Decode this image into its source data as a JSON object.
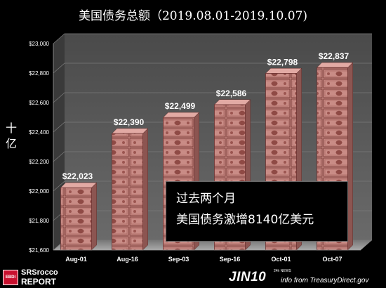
{
  "title": "美国债务总额（2019.08.01-2019.10.07)",
  "ylabel": "十亿",
  "annotation": {
    "line1": "过去两个月",
    "line2": "美国债务激增8140亿美元"
  },
  "logo": {
    "badge_text": "EBDI",
    "name_line1": "SRSrocco",
    "name_line2": "REPORT"
  },
  "watermark": {
    "brand": "JIN10",
    "brand_sup": "24h NEWS",
    "credit": "info from TreasuryDirect.gov"
  },
  "colors": {
    "background": "#000000",
    "bar_fill": "#c98c86",
    "bar_line": "#6e3432",
    "wall": "#555555",
    "gridline": "#7a7a7a"
  },
  "chart_data": {
    "type": "bar",
    "title": "美国债务总额（2019.08.01-2019.10.07)",
    "xlabel": "",
    "ylabel": "十亿",
    "categories": [
      "Aug-01",
      "Aug-16",
      "Sep-03",
      "Sep-16",
      "Oct-01",
      "Oct-07"
    ],
    "values": [
      22023,
      22390,
      22499,
      22586,
      22798,
      22837
    ],
    "data_labels": [
      "$22,023",
      "$22,390",
      "$22,499",
      "$22,586",
      "$22,798",
      "$22,837"
    ],
    "ylim": [
      21600,
      23000
    ],
    "yticks": [
      21600,
      21800,
      22000,
      22200,
      22400,
      22600,
      22800,
      23000
    ],
    "ytick_labels": [
      "$21,600",
      "$21,800",
      "$22,000",
      "$22,200",
      "$22,400",
      "$22,600",
      "$22,800",
      "$23,000"
    ],
    "grid": true,
    "legend": "none",
    "style": "3d-bars-with-currency-texture"
  }
}
